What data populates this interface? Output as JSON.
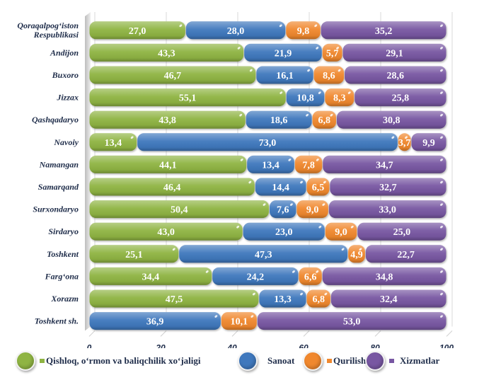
{
  "chart_data": {
    "type": "bar",
    "orientation": "horizontal",
    "stacked": "percent",
    "title": "",
    "xlabel": "",
    "ylabel": "",
    "xlim": [
      0,
      100
    ],
    "x_ticks": [
      "0",
      "20",
      "40",
      "60",
      "80",
      "100"
    ],
    "grid": true,
    "legend_position": "bottom",
    "categories": [
      "Qoraqalpog‘iston Respublikasi",
      "Andijon",
      "Buxoro",
      "Jizzax",
      "Qashqadaryo",
      "Navoiy",
      "Namangan",
      "Samarqand",
      "Surxondaryo",
      "Sirdaryo",
      "Toshkent",
      "Farg‘ona",
      "Xorazm",
      "Toshkent sh."
    ],
    "category_lines": [
      [
        "Qoraqalpog‘iston",
        "Respublikasi"
      ],
      [
        "Andijon"
      ],
      [
        "Buxoro"
      ],
      [
        "Jizzax"
      ],
      [
        "Qashqadaryo"
      ],
      [
        "Navoiy"
      ],
      [
        "Namangan"
      ],
      [
        "Samarqand"
      ],
      [
        "Surxondaryo"
      ],
      [
        "Sirdaryo"
      ],
      [
        "Toshkent"
      ],
      [
        "Farg‘ona"
      ],
      [
        "Xorazm"
      ],
      [
        "Toshkent sh."
      ]
    ],
    "series": [
      {
        "name": "Qishloq, o‘rmon va baliqchilik xo‘jaligi",
        "color": "#8fb443",
        "values": [
          27.0,
          43.3,
          46.7,
          55.1,
          43.8,
          13.4,
          44.1,
          46.4,
          50.4,
          43.0,
          25.1,
          34.4,
          47.5,
          null
        ],
        "labels": [
          "27,0",
          "43,3",
          "46,7",
          "55,1",
          "43,8",
          "13,4",
          "44,1",
          "46,4",
          "50,4",
          "43,0",
          "25,1",
          "34,4",
          "47,5",
          ""
        ]
      },
      {
        "name": "Sanoat",
        "color": "#3f78bd",
        "values": [
          28.0,
          21.9,
          16.1,
          10.8,
          18.6,
          73.0,
          13.4,
          14.4,
          7.6,
          23.0,
          47.3,
          24.2,
          13.3,
          36.9
        ],
        "labels": [
          "28,0",
          "21,9",
          "16,1",
          "10,8",
          "18,6",
          "73,0",
          "13,4",
          "14,4",
          "7,6",
          "23,0",
          "47,3",
          "24,2",
          "13,3",
          "36,9"
        ]
      },
      {
        "name": "Qurilish",
        "color": "#f0882e",
        "values": [
          9.8,
          5.7,
          8.6,
          8.3,
          6.8,
          3.7,
          7.8,
          6.5,
          9.0,
          9.0,
          4.9,
          6.6,
          6.8,
          10.1
        ],
        "labels": [
          "9,8",
          "5,7",
          "8,6",
          "8,3",
          "6,8",
          "3,7",
          "7,8",
          "6,5",
          "9,0",
          "9,0",
          "4,9",
          "6,6",
          "6,8",
          "10,1"
        ]
      },
      {
        "name": "Xizmatlar",
        "color": "#7857a2",
        "values": [
          35.2,
          29.1,
          28.6,
          25.8,
          30.8,
          9.9,
          34.7,
          32.7,
          33.0,
          25.0,
          22.7,
          34.8,
          32.4,
          53.0
        ],
        "labels": [
          "35,2",
          "29,1",
          "28,6",
          "25,8",
          "30,8",
          "9,9",
          "34,7",
          "32,7",
          "33,0",
          "25,0",
          "22,7",
          "34,8",
          "32,4",
          "53,0"
        ]
      }
    ]
  },
  "legend": {
    "items": [
      {
        "label": "Qishloq, o‘rmon va baliqchilik xo‘jaligi",
        "color": "#8fb443",
        "icon": "green-circle-icon"
      },
      {
        "label": "Sanoat",
        "color": "#3f78bd",
        "icon": "blue-circle-icon"
      },
      {
        "label": "Qurilish",
        "color": "#f0882e",
        "icon": "orange-circle-icon"
      },
      {
        "label": "Xizmatlar",
        "color": "#7857a2",
        "icon": "purple-circle-icon"
      }
    ]
  }
}
